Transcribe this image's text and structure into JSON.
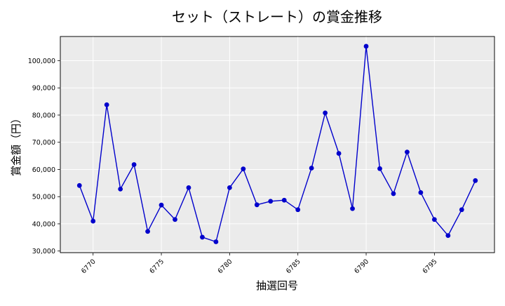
{
  "chart_data": {
    "type": "line",
    "title": "セット（ストレート）の賞金推移",
    "xlabel": "抽選回号",
    "ylabel": "賞金額（円）",
    "x": [
      6769,
      6770,
      6771,
      6772,
      6773,
      6774,
      6775,
      6776,
      6777,
      6778,
      6779,
      6780,
      6781,
      6782,
      6783,
      6784,
      6785,
      6786,
      6787,
      6788,
      6789,
      6790,
      6791,
      6792,
      6793,
      6794,
      6795,
      6796,
      6797,
      6798
    ],
    "series": [
      {
        "values": [
          54100,
          41000,
          83800,
          52800,
          61800,
          37200,
          46900,
          41600,
          53300,
          35100,
          33400,
          53300,
          60200,
          47000,
          48300,
          48700,
          45200,
          60500,
          80800,
          65900,
          45600,
          105300,
          60300,
          51100,
          66400,
          51500,
          41600,
          35700,
          45200,
          55900
        ],
        "color": "#0000cc"
      }
    ],
    "xticks": [
      6770,
      6775,
      6780,
      6785,
      6790,
      6795
    ],
    "xtick_labels": [
      "6770",
      "6775",
      "6780",
      "6785",
      "6790",
      "6795"
    ],
    "yticks": [
      30000,
      40000,
      50000,
      60000,
      70000,
      80000,
      90000,
      100000
    ],
    "ytick_labels": [
      "30,000",
      "40,000",
      "50,000",
      "60,000",
      "70,000",
      "80,000",
      "90,000",
      "100,000"
    ],
    "xlim": [
      6767.6,
      6799.4
    ],
    "ylim": [
      29400,
      108900
    ],
    "grid": true,
    "plot_background": "#ebebeb"
  }
}
